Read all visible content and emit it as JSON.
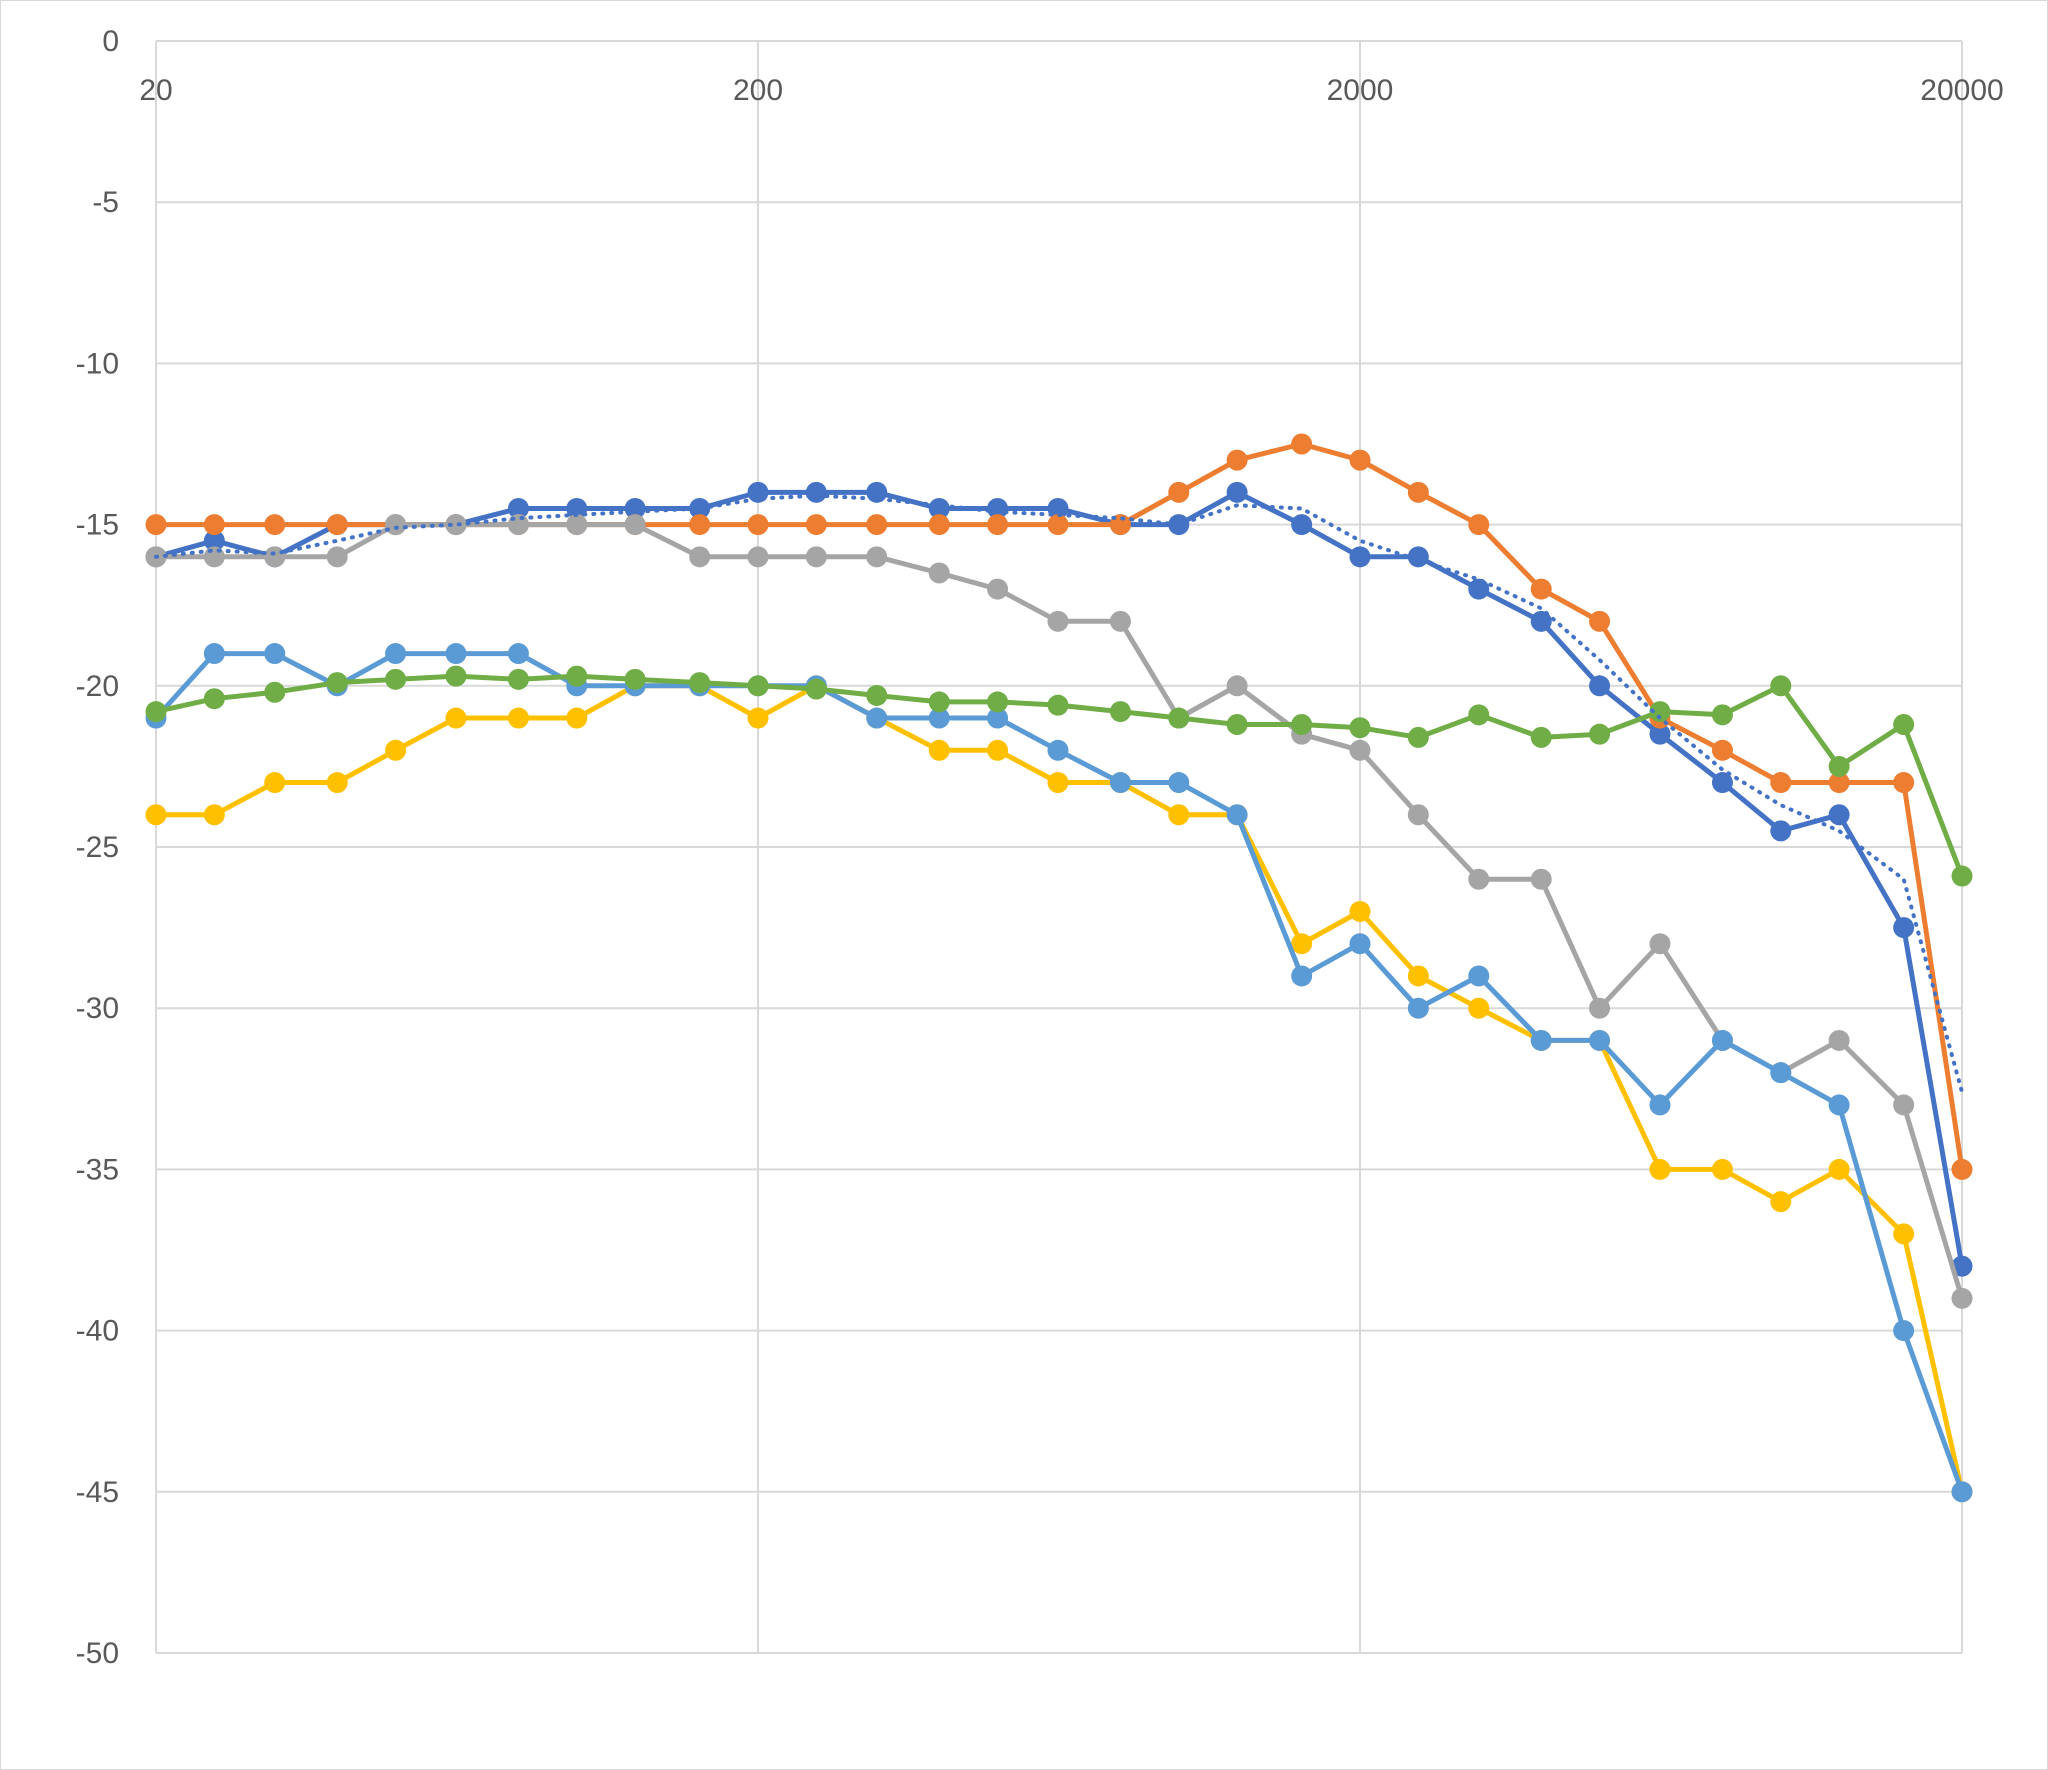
{
  "chart_data": {
    "type": "line",
    "title": "",
    "xlabel": "",
    "ylabel": "",
    "x_scale": "log",
    "xlim": [
      20,
      20000
    ],
    "ylim": [
      -50,
      0
    ],
    "x_ticks": [
      20,
      200,
      2000,
      20000
    ],
    "y_ticks": [
      0,
      -5,
      -10,
      -15,
      -20,
      -25,
      -30,
      -35,
      -40,
      -45,
      -50
    ],
    "x_tick_labels": [
      "20",
      "200",
      "2000",
      "20000"
    ],
    "y_tick_labels": [
      "0",
      "-5",
      "-10",
      "-15",
      "-20",
      "-25",
      "-30",
      "-35",
      "-40",
      "-45",
      "-50"
    ],
    "grid": true,
    "legend": "none",
    "x": [
      20,
      25,
      31.5,
      40,
      50,
      63,
      80,
      100,
      125,
      160,
      200,
      250,
      315,
      400,
      500,
      630,
      800,
      1000,
      1250,
      1600,
      2000,
      2500,
      3150,
      4000,
      5000,
      6300,
      8000,
      10000,
      12500,
      16000,
      20000
    ],
    "series": [
      {
        "color": "#4472C4",
        "marker": "circle",
        "values": [
          -16,
          -15.5,
          -16,
          -15,
          -15,
          -15,
          -14.5,
          -14.5,
          -14.5,
          -14.5,
          -14,
          -14,
          -14,
          -14.5,
          -14.5,
          -14.5,
          -15,
          -15,
          -14,
          -15,
          -16,
          -16,
          -17,
          -18,
          -20,
          -21.5,
          -23,
          -24.5,
          -24,
          -27.5,
          -38
        ]
      },
      {
        "color": "#ED7D31",
        "marker": "circle",
        "values": [
          -15,
          -15,
          -15,
          -15,
          -15,
          -15,
          -15,
          -15,
          -15,
          -15,
          -15,
          -15,
          -15,
          -15,
          -15,
          -15,
          -15,
          -14,
          -13,
          -12.5,
          -13,
          -14,
          -15,
          -17,
          -18,
          -21,
          -22,
          -23,
          -23,
          -23,
          -35
        ]
      },
      {
        "color": "#A5A5A5",
        "marker": "circle",
        "values": [
          -16,
          -16,
          -16,
          -16,
          -15,
          -15,
          -15,
          -15,
          -15,
          -16,
          -16,
          -16,
          -16,
          -16.5,
          -17,
          -18,
          -18,
          -21,
          -20,
          -21.5,
          -22,
          -24,
          -26,
          -26,
          -30,
          -28,
          -31,
          -32,
          -31,
          -33,
          -39
        ]
      },
      {
        "color": "#FFC000",
        "marker": "circle",
        "values": [
          -24,
          -24,
          -23,
          -23,
          -22,
          -21,
          -21,
          -21,
          -20,
          -20,
          -21,
          -20,
          -21,
          -22,
          -22,
          -23,
          -23,
          -24,
          -24,
          -28,
          -27,
          -29,
          -30,
          -31,
          -31,
          -35,
          -35,
          -36,
          -35,
          -37,
          -45
        ]
      },
      {
        "color": "#5B9BD5",
        "marker": "circle",
        "values": [
          -21,
          -19,
          -19,
          -20,
          -19,
          -19,
          -19,
          -20,
          -20,
          -20,
          -20,
          -20,
          -21,
          -21,
          -21,
          -22,
          -23,
          -23,
          -24,
          -29,
          -28,
          -30,
          -29,
          -31,
          -31,
          -33,
          -31,
          -32,
          -33,
          -40,
          -45
        ]
      },
      {
        "color": "#70AD47",
        "marker": "circle",
        "values": [
          -20.8,
          -20.4,
          -20.2,
          -19.9,
          -19.8,
          -19.7,
          -19.8,
          -19.7,
          -19.8,
          -19.9,
          -20,
          -20.1,
          -20.3,
          -20.5,
          -20.5,
          -20.6,
          -20.8,
          -21,
          -21.2,
          -21.2,
          -21.3,
          -21.6,
          -20.9,
          -21.6,
          -21.5,
          -20.8,
          -20.9,
          -20,
          -22.5,
          -21.2,
          -25.9
        ]
      },
      {
        "color": "#4472C4",
        "style": "dotted",
        "marker": "none",
        "values": [
          -16,
          -15.8,
          -15.9,
          -15.5,
          -15.1,
          -15,
          -14.8,
          -14.7,
          -14.6,
          -14.5,
          -14.2,
          -14.1,
          -14.2,
          -14.4,
          -14.6,
          -14.7,
          -14.8,
          -15,
          -14.4,
          -14.5,
          -15.5,
          -16.1,
          -16.7,
          -17.6,
          -19.2,
          -21,
          -22.6,
          -23.7,
          -24.5,
          -26,
          -32.6
        ]
      }
    ]
  }
}
